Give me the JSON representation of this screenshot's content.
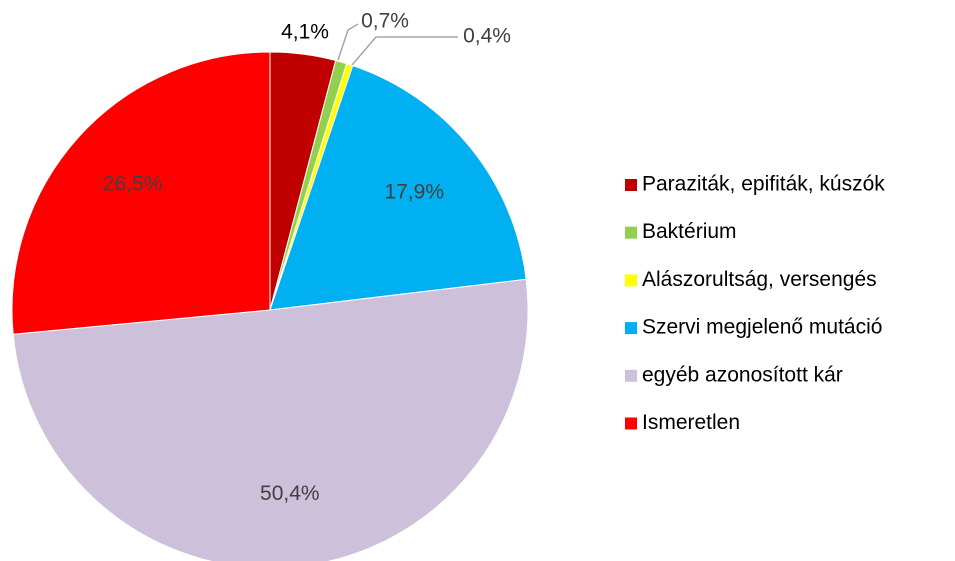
{
  "chart_data": {
    "type": "pie",
    "categories": [
      "Paraziták, epifiták, kúszók",
      "Baktérium",
      "Alászorultság, versengés",
      "Szervi megjelenő mutáció",
      "egyéb azonosított kár",
      "Ismeretlen"
    ],
    "values": [
      4.1,
      0.7,
      0.4,
      17.9,
      50.4,
      26.5
    ],
    "value_labels": [
      "4,1%",
      "0,7%",
      "0,4%",
      "17,9%",
      "50,4%",
      "26,5%"
    ],
    "colors": [
      "#c00000",
      "#92d050",
      "#ffff00",
      "#00b0f0",
      "#ccc0da",
      "#ff0000"
    ],
    "legend": "right"
  }
}
